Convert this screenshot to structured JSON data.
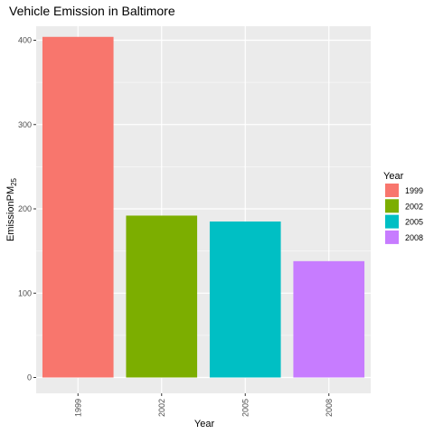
{
  "chart_data": {
    "type": "bar",
    "title": "Vehicle Emission in Baltimore",
    "xlabel": "Year",
    "ylabel_main": "Emission",
    "ylabel_sub": "PM",
    "ylabel_subscript": "25",
    "categories": [
      "1999",
      "2002",
      "2005",
      "2008"
    ],
    "values": [
      404,
      192,
      185,
      138
    ],
    "ylim": [
      0,
      420
    ],
    "yticks": [
      0,
      100,
      200,
      300,
      400
    ],
    "grid": true,
    "legend": {
      "title": "Year",
      "position": "right",
      "entries": [
        "1999",
        "2002",
        "2005",
        "2008"
      ]
    },
    "colors": [
      "#F8766D",
      "#7CAE00",
      "#00BFC4",
      "#C77CFF"
    ],
    "panel_background": "#EBEBEB",
    "grid_color": "#FFFFFF"
  }
}
